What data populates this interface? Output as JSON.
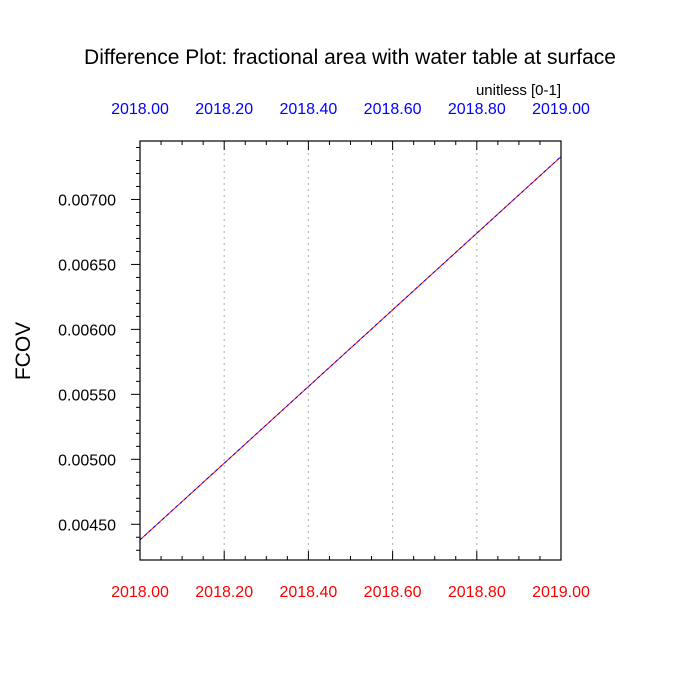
{
  "chart_data": {
    "type": "line",
    "title": "Difference Plot: fractional area with water table at surface",
    "units_label": "unitless [0-1]",
    "ylabel": "FCOV",
    "xlim": [
      2018.0,
      2019.0
    ],
    "ylim": [
      0.004225,
      0.00745
    ],
    "x_ticks": [
      2018.0,
      2018.2,
      2018.4,
      2018.6,
      2018.8,
      2019.0
    ],
    "x_tick_labels": [
      "2018.00",
      "2018.20",
      "2018.40",
      "2018.60",
      "2018.80",
      "2019.00"
    ],
    "y_ticks": [
      0.0045,
      0.005,
      0.0055,
      0.006,
      0.0065,
      0.007
    ],
    "y_tick_labels": [
      "0.00450",
      "0.00500",
      "0.00550",
      "0.00600",
      "0.00650",
      "0.00700"
    ],
    "grid": "vertical dotted",
    "series": [
      {
        "color": "#ff0000",
        "x": [
          2018.0,
          2019.0
        ],
        "y": [
          0.00438,
          0.00733
        ]
      },
      {
        "color": "#0000ff",
        "x": [
          2018.0,
          2019.0
        ],
        "y": [
          0.00438,
          0.00733
        ]
      }
    ],
    "colors": {
      "top_axis_labels": "#0000ff",
      "bottom_axis_labels": "#ff0000",
      "grid": "#bbbbbb"
    }
  }
}
